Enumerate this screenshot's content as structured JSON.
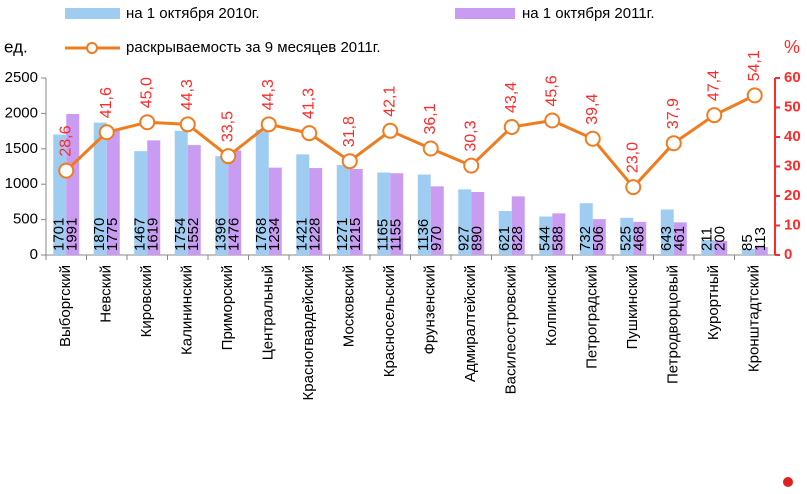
{
  "chart_data": {
    "type": "bar-line",
    "y_label": "ед.",
    "y2_label": "%",
    "categories": [
      "Выборгский",
      "Невский",
      "Кировский",
      "Калининский",
      "Приморский",
      "Центральный",
      "Красногвардейский",
      "Московский",
      "Красносельский",
      "Фрунзенский",
      "Адмиралтейский",
      "Василеостровский",
      "Колпинский",
      "Петроградский",
      "Пушкинский",
      "Петродворцовый",
      "Курортный",
      "Кронштадтский"
    ],
    "series": [
      {
        "name": "на 1 октября 2010г.",
        "type": "bar",
        "axis": "y",
        "color": "#9fcdf2",
        "values": [
          1701,
          1870,
          1467,
          1754,
          1396,
          1768,
          1421,
          1271,
          1165,
          1136,
          927,
          621,
          544,
          732,
          525,
          643,
          211,
          85
        ]
      },
      {
        "name": "на 1 октября 2011г.",
        "type": "bar",
        "axis": "y",
        "color": "#c99cf2",
        "values": [
          1991,
          1775,
          1619,
          1552,
          1476,
          1234,
          1228,
          1215,
          1155,
          970,
          890,
          828,
          588,
          506,
          468,
          461,
          200,
          113
        ]
      },
      {
        "name": "раскрываемость за 9 месяцев 2011г.",
        "type": "line",
        "axis": "y2",
        "color": "#f07c20",
        "label_color": "#ff2a2a",
        "values": [
          28.6,
          41.6,
          45.0,
          44.3,
          33.5,
          44.3,
          41.3,
          31.8,
          42.1,
          36.1,
          30.3,
          43.4,
          45.6,
          39.4,
          23.0,
          37.9,
          47.4,
          54.1
        ],
        "value_labels": [
          "28,6",
          "41,6",
          "45,0",
          "44,3",
          "33,5",
          "44,3",
          "41,3",
          "31,8",
          "42,1",
          "36,1",
          "30,3",
          "43,4",
          "45,6",
          "39,4",
          "23,0",
          "37,9",
          "47,4",
          "54,1"
        ]
      }
    ],
    "ylim": [
      0,
      2500
    ],
    "yticks": [
      0,
      500,
      1000,
      1500,
      2000,
      2500
    ],
    "y2lim": [
      0,
      60
    ],
    "y2ticks": [
      0,
      10,
      20,
      30,
      40,
      50,
      60
    ],
    "y2_color": "#ff2a2a"
  }
}
